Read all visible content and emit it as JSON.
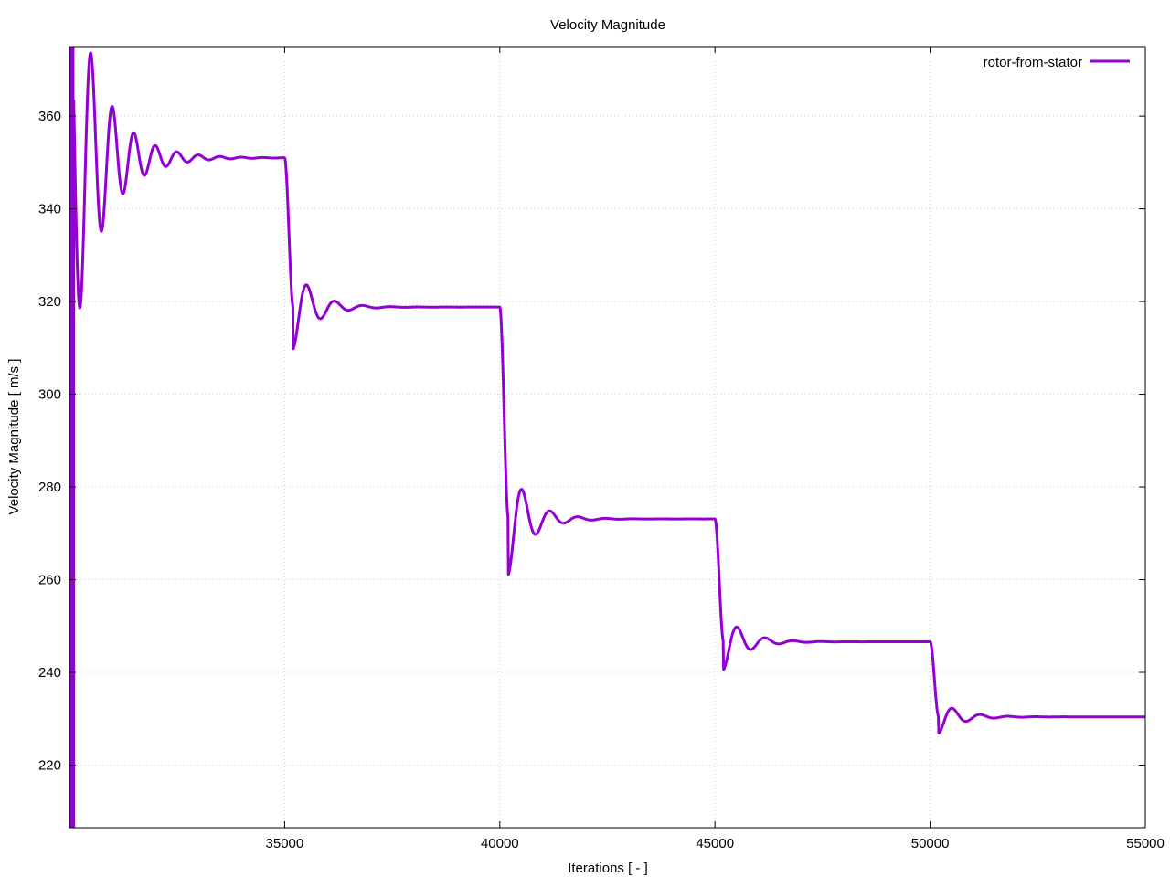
{
  "chart_data": {
    "type": "line",
    "title": "Velocity Magnitude",
    "xlabel": "Iterations [ - ]",
    "ylabel": "Velocity Magnitude [ m/s ]",
    "xlim": [
      30000,
      55000
    ],
    "ylim": [
      206.5,
      375
    ],
    "xticks": [
      35000,
      40000,
      45000,
      50000,
      55000
    ],
    "yticks": [
      220,
      240,
      260,
      280,
      300,
      320,
      340,
      360
    ],
    "grid": true,
    "legend_position": "top-right",
    "series": [
      {
        "name": "rotor-from-stator",
        "color": "#9400d3",
        "steps": [
          {
            "start": 30000,
            "from": 376,
            "to": 351,
            "period": 500,
            "decay": 700,
            "amp0": 46
          },
          {
            "start": 35000,
            "from": 351,
            "to": 318.8,
            "period": 650,
            "decay": 500,
            "amp0": -9
          },
          {
            "start": 40000,
            "from": 318.8,
            "to": 273.1,
            "period": 650,
            "decay": 500,
            "amp0": -12
          },
          {
            "start": 45000,
            "from": 273.1,
            "to": 246.6,
            "period": 650,
            "decay": 500,
            "amp0": -6
          },
          {
            "start": 50000,
            "from": 246.6,
            "to": 230.4,
            "period": 650,
            "decay": 500,
            "amp0": -3.5
          }
        ],
        "initial_transient": {
          "x_end": 30100,
          "ymin": 206.5,
          "ymax": 375
        }
      }
    ]
  }
}
